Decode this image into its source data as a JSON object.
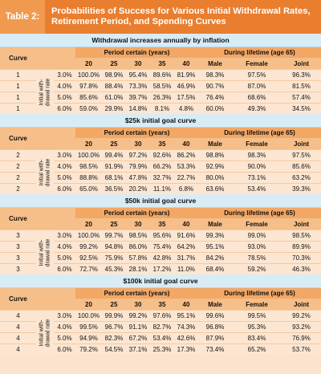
{
  "header": {
    "tag": "Table 2:",
    "title": "Probabilities of Success for Various Initial Withdrawal Rates, Retirement Period, and Spending Curves"
  },
  "labels": {
    "curve": "Curve",
    "period_certain": "Period certain (years)",
    "lifetime": "During lifetime (age 65)",
    "years": [
      "20",
      "25",
      "30",
      "35",
      "40"
    ],
    "life_cols": [
      "Male",
      "Female",
      "Joint"
    ],
    "rate_label": "Initial with- drawal rate"
  },
  "sections": [
    {
      "title": "Withdrawal increases annually by inflation",
      "curve": "1",
      "rows": [
        {
          "rate": "3.0%",
          "period": [
            "100.0%",
            "98.9%",
            "95.4%",
            "89.6%",
            "81.9%"
          ],
          "life": [
            "98.3%",
            "97.5%",
            "96.3%"
          ]
        },
        {
          "rate": "4.0%",
          "period": [
            "97.8%",
            "88.4%",
            "73.3%",
            "58.5%",
            "46.9%"
          ],
          "life": [
            "90.7%",
            "87.0%",
            "81.5%"
          ]
        },
        {
          "rate": "5.0%",
          "period": [
            "85.6%",
            "61.0%",
            "39.7%",
            "26.3%",
            "17.5%"
          ],
          "life": [
            "76.4%",
            "68.6%",
            "57.4%"
          ]
        },
        {
          "rate": "6.0%",
          "period": [
            "59.0%",
            "29.9%",
            "14.8%",
            "8.1%",
            "4.8%"
          ],
          "life": [
            "60.0%",
            "49.3%",
            "34.5%"
          ]
        }
      ]
    },
    {
      "title": "$25k initial goal curve",
      "curve": "2",
      "rows": [
        {
          "rate": "3.0%",
          "period": [
            "100.0%",
            "99.4%",
            "97.2%",
            "92.6%",
            "86.2%"
          ],
          "life": [
            "98.8%",
            "98.3%",
            "97.5%"
          ]
        },
        {
          "rate": "4.0%",
          "period": [
            "98.5%",
            "91.9%",
            "79.9%",
            "66.2%",
            "53.3%"
          ],
          "life": [
            "92.9%",
            "90.0%",
            "85.6%"
          ]
        },
        {
          "rate": "5.0%",
          "period": [
            "88.8%",
            "68.1%",
            "47.8%",
            "32.7%",
            "22.7%"
          ],
          "life": [
            "80.0%",
            "73.1%",
            "63.2%"
          ]
        },
        {
          "rate": "6.0%",
          "period": [
            "65.0%",
            "36.5%",
            "20.2%",
            "11.1%",
            "6.8%"
          ],
          "life": [
            "63.6%",
            "53.4%",
            "39.3%"
          ]
        }
      ]
    },
    {
      "title": "$50k initial goal curve",
      "curve": "3",
      "rows": [
        {
          "rate": "3.0%",
          "period": [
            "100.0%",
            "99.7%",
            "98.5%",
            "95.6%",
            "91.6%"
          ],
          "life": [
            "99.3%",
            "99.0%",
            "98.5%"
          ]
        },
        {
          "rate": "4.0%",
          "period": [
            "99.2%",
            "94.8%",
            "86.0%",
            "75.4%",
            "64.2%"
          ],
          "life": [
            "95.1%",
            "93.0%",
            "89.9%"
          ]
        },
        {
          "rate": "5.0%",
          "period": [
            "92.5%",
            "75.9%",
            "57.8%",
            "42.8%",
            "31.7%"
          ],
          "life": [
            "84.2%",
            "78.5%",
            "70.3%"
          ]
        },
        {
          "rate": "6.0%",
          "period": [
            "72.7%",
            "45.3%",
            "28.1%",
            "17.2%",
            "11.0%"
          ],
          "life": [
            "68.4%",
            "59.2%",
            "46.3%"
          ]
        }
      ]
    },
    {
      "title": "$100k initial goal curve",
      "curve": "4",
      "rows": [
        {
          "rate": "3.0%",
          "period": [
            "100.0%",
            "99.9%",
            "99.2%",
            "97.6%",
            "95.1%"
          ],
          "life": [
            "99.6%",
            "99.5%",
            "99.2%"
          ]
        },
        {
          "rate": "4.0%",
          "period": [
            "99.5%",
            "96.7%",
            "91.1%",
            "82.7%",
            "74.3%"
          ],
          "life": [
            "96.8%",
            "95.3%",
            "93.2%"
          ]
        },
        {
          "rate": "5.0%",
          "period": [
            "94.9%",
            "82.3%",
            "67.2%",
            "53.4%",
            "42.6%"
          ],
          "life": [
            "87.9%",
            "83.4%",
            "76.9%"
          ]
        },
        {
          "rate": "6.0%",
          "period": [
            "79.2%",
            "54.5%",
            "37.1%",
            "25.3%",
            "17.3%"
          ],
          "life": [
            "73.4%",
            "65.2%",
            "53.7%"
          ]
        }
      ]
    }
  ]
}
